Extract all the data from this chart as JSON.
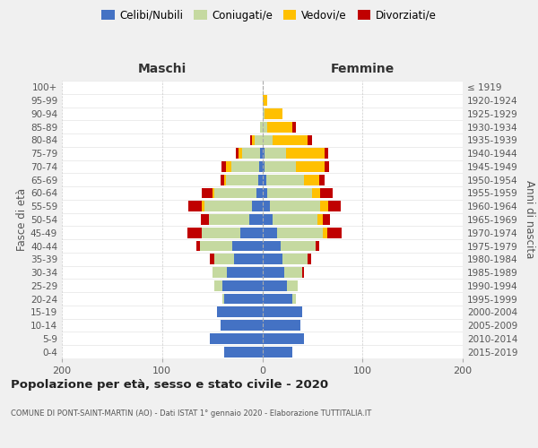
{
  "age_groups": [
    "0-4",
    "5-9",
    "10-14",
    "15-19",
    "20-24",
    "25-29",
    "30-34",
    "35-39",
    "40-44",
    "45-49",
    "50-54",
    "55-59",
    "60-64",
    "65-69",
    "70-74",
    "75-79",
    "80-84",
    "85-89",
    "90-94",
    "95-99",
    "100+"
  ],
  "birth_years": [
    "2015-2019",
    "2010-2014",
    "2005-2009",
    "2000-2004",
    "1995-1999",
    "1990-1994",
    "1985-1989",
    "1980-1984",
    "1975-1979",
    "1970-1974",
    "1965-1969",
    "1960-1964",
    "1955-1959",
    "1950-1954",
    "1945-1949",
    "1940-1944",
    "1935-1939",
    "1930-1934",
    "1925-1929",
    "1920-1924",
    "≤ 1919"
  ],
  "maschi": {
    "celibi": [
      38,
      52,
      42,
      45,
      38,
      40,
      35,
      28,
      30,
      22,
      13,
      10,
      6,
      4,
      3,
      2,
      0,
      0,
      0,
      0,
      0
    ],
    "coniugati": [
      0,
      0,
      0,
      0,
      2,
      8,
      15,
      20,
      32,
      38,
      40,
      48,
      42,
      32,
      28,
      18,
      8,
      2,
      0,
      0,
      0
    ],
    "vedovi": [
      0,
      0,
      0,
      0,
      0,
      0,
      0,
      0,
      0,
      0,
      0,
      2,
      2,
      2,
      5,
      4,
      2,
      0,
      0,
      0,
      0
    ],
    "divorziati": [
      0,
      0,
      0,
      0,
      0,
      0,
      0,
      4,
      4,
      15,
      8,
      14,
      10,
      4,
      5,
      2,
      2,
      0,
      0,
      0,
      0
    ]
  },
  "femmine": {
    "nubili": [
      30,
      42,
      38,
      40,
      30,
      25,
      22,
      20,
      18,
      15,
      10,
      8,
      5,
      4,
      2,
      2,
      0,
      0,
      0,
      0,
      0
    ],
    "coniugate": [
      0,
      0,
      0,
      0,
      4,
      10,
      18,
      25,
      35,
      45,
      45,
      50,
      45,
      38,
      32,
      22,
      10,
      5,
      2,
      0,
      0
    ],
    "vedove": [
      0,
      0,
      0,
      0,
      0,
      0,
      0,
      0,
      0,
      5,
      5,
      8,
      8,
      15,
      28,
      38,
      35,
      25,
      18,
      5,
      0
    ],
    "divorziate": [
      0,
      0,
      0,
      0,
      0,
      0,
      2,
      4,
      4,
      14,
      8,
      12,
      12,
      5,
      5,
      4,
      5,
      4,
      0,
      0,
      0
    ]
  },
  "color_celibi": "#4472c4",
  "color_coniugati": "#c5d9a0",
  "color_vedovi": "#ffc000",
  "color_divorziati": "#c00000",
  "title": "Popolazione per età, sesso e stato civile - 2020",
  "subtitle": "COMUNE DI PONT-SAINT-MARTIN (AO) - Dati ISTAT 1° gennaio 2020 - Elaborazione TUTTITALIA.IT",
  "xlabel_left": "Maschi",
  "xlabel_right": "Femmine",
  "ylabel_left": "Fasce di età",
  "ylabel_right": "Anni di nascita",
  "xlim": 200,
  "bg_color": "#f0f0f0",
  "plot_bg": "#ffffff"
}
